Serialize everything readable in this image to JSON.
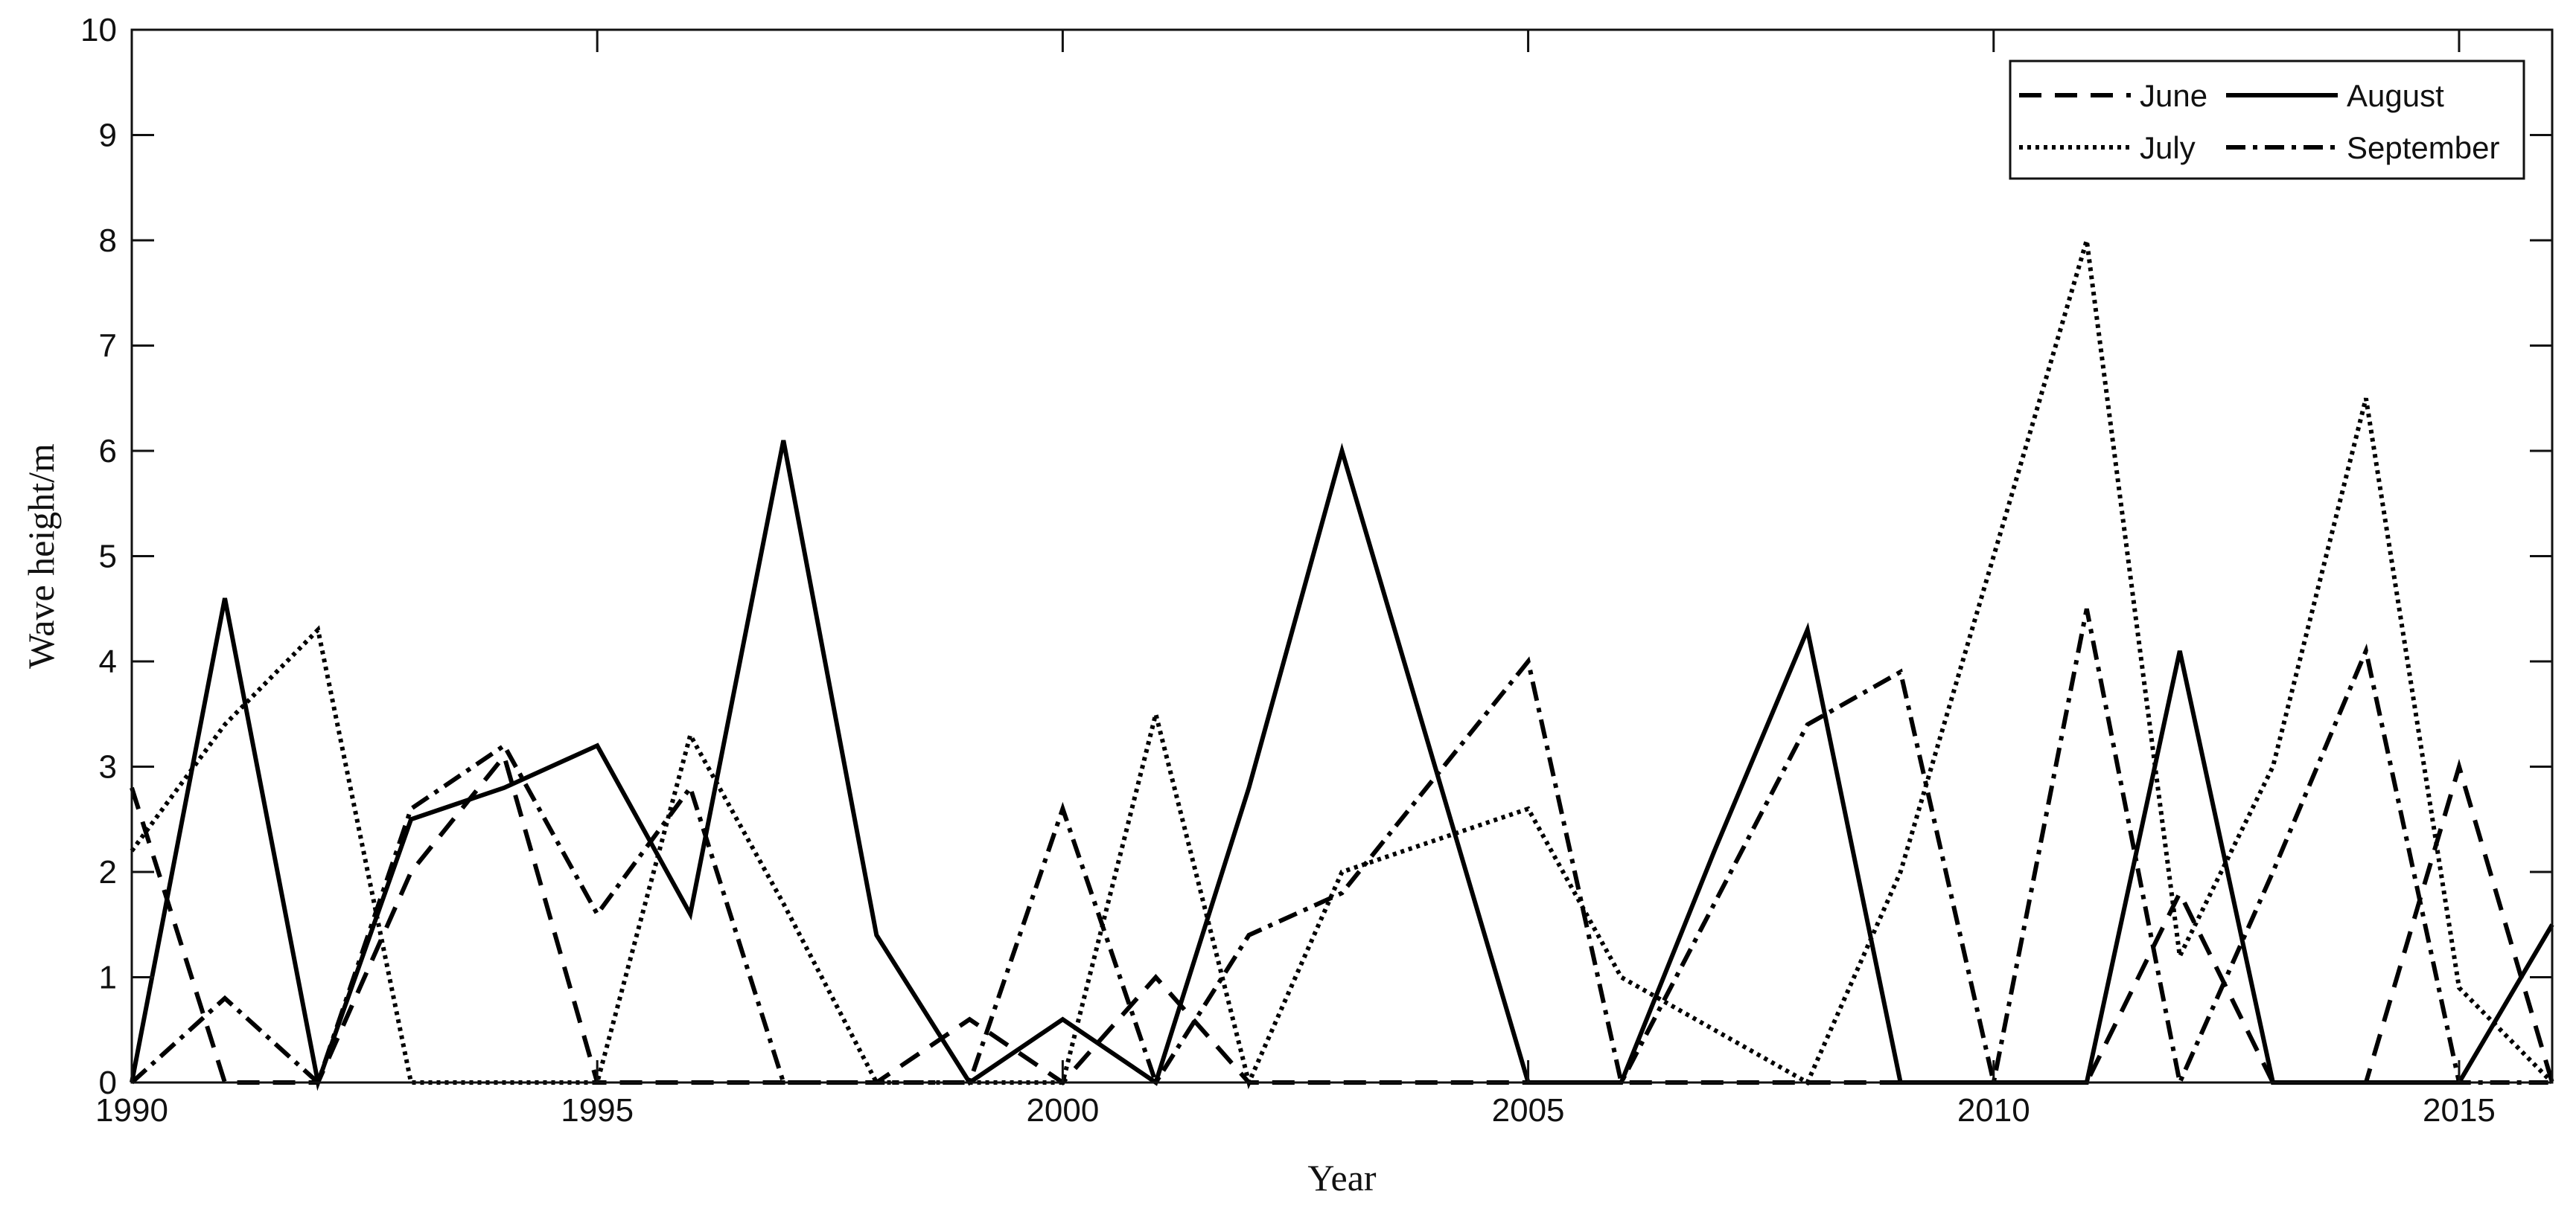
{
  "chart_data": {
    "type": "line",
    "xlabel": "Year",
    "ylabel": "Wave height/m",
    "xlim": [
      1990,
      2016
    ],
    "ylim": [
      0,
      10
    ],
    "xticks": [
      1990,
      1995,
      2000,
      2005,
      2010,
      2015
    ],
    "yticks": [
      0,
      1,
      2,
      3,
      4,
      5,
      6,
      7,
      8,
      9,
      10
    ],
    "grid": false,
    "legend_position": "top-right",
    "x": [
      1990,
      1991,
      1992,
      1993,
      1994,
      1995,
      1996,
      1997,
      1998,
      1999,
      2000,
      2001,
      2002,
      2003,
      2004,
      2005,
      2006,
      2007,
      2008,
      2009,
      2010,
      2011,
      2012,
      2013,
      2014,
      2015,
      2016
    ],
    "series": [
      {
        "name": "June",
        "style": "dashed",
        "color": "#000000",
        "values": [
          2.8,
          0,
          0,
          2.0,
          3.1,
          0,
          0,
          0,
          0,
          0.6,
          0,
          1.0,
          0,
          0,
          0,
          0,
          0,
          0,
          0,
          0,
          0,
          0,
          1.8,
          0,
          0,
          3.0,
          0
        ]
      },
      {
        "name": "July",
        "style": "dotted",
        "color": "#000000",
        "values": [
          2.2,
          3.4,
          4.3,
          0,
          0,
          0,
          3.3,
          1.7,
          0,
          0,
          0,
          3.5,
          0,
          2.0,
          2.3,
          2.6,
          1.0,
          0.5,
          0,
          2.0,
          5.0,
          8.0,
          1.2,
          3.0,
          6.5,
          0.9,
          0
        ]
      },
      {
        "name": "August",
        "style": "solid",
        "color": "#000000",
        "values": [
          0,
          4.6,
          0,
          2.5,
          2.8,
          3.2,
          1.6,
          6.1,
          1.4,
          0,
          0.6,
          0,
          2.8,
          6.0,
          3.0,
          0,
          0,
          2.2,
          4.3,
          0,
          0,
          0,
          4.1,
          0,
          0,
          0,
          1.5
        ]
      },
      {
        "name": "September",
        "style": "dashdot",
        "color": "#000000",
        "values": [
          0,
          0.8,
          0,
          2.6,
          3.2,
          1.6,
          2.8,
          0,
          0,
          0,
          2.6,
          0,
          1.4,
          1.8,
          2.9,
          4.0,
          0,
          1.7,
          3.4,
          3.9,
          0,
          4.5,
          0,
          2.0,
          4.1,
          0,
          0
        ]
      }
    ]
  }
}
